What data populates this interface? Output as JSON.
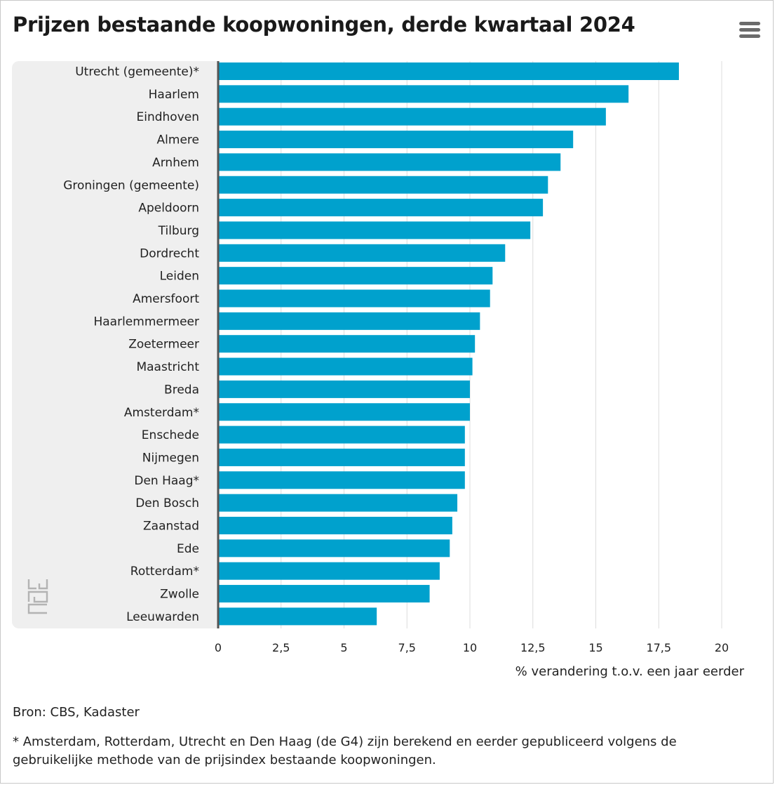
{
  "title": "Prijzen bestaande koopwoningen, derde kwartaal 2024",
  "menu": {
    "icon": "hamburger-menu-icon"
  },
  "logo": {
    "icon": "cbs-logo-icon"
  },
  "chart_data": {
    "type": "bar",
    "orientation": "horizontal",
    "title": "Prijzen bestaande koopwoningen, derde kwartaal 2024",
    "xlabel": "% verandering t.o.v. een jaar eerder",
    "ylabel": "",
    "xlim": [
      0,
      20
    ],
    "grid": true,
    "tick_values": [
      0,
      2.5,
      5,
      7.5,
      10,
      12.5,
      15,
      17.5,
      20
    ],
    "tick_labels": [
      "0",
      "2,5",
      "5",
      "7,5",
      "10",
      "12,5",
      "15",
      "17,5",
      "20"
    ],
    "bar_color": "#00a1cd",
    "categories": [
      "Utrecht (gemeente)*",
      "Haarlem",
      "Eindhoven",
      "Almere",
      "Arnhem",
      "Groningen (gemeente)",
      "Apeldoorn",
      "Tilburg",
      "Dordrecht",
      "Leiden",
      "Amersfoort",
      "Haarlemmermeer",
      "Zoetermeer",
      "Maastricht",
      "Breda",
      "Amsterdam*",
      "Enschede",
      "Nijmegen",
      "Den Haag*",
      "Den Bosch",
      "Zaanstad",
      "Ede",
      "Rotterdam*",
      "Zwolle",
      "Leeuwarden"
    ],
    "values": [
      18.3,
      16.3,
      15.4,
      14.1,
      13.6,
      13.1,
      12.9,
      12.4,
      11.4,
      10.9,
      10.8,
      10.4,
      10.2,
      10.1,
      10.0,
      10.0,
      9.8,
      9.8,
      9.8,
      9.5,
      9.3,
      9.2,
      8.8,
      8.4,
      6.3
    ]
  },
  "source": "Bron: CBS, Kadaster",
  "note": "* Amsterdam, Rotterdam, Utrecht en Den Haag (de G4) zijn berekend en eerder gepubliceerd volgens de gebruikelijke methode van de prijsindex bestaande koopwoningen."
}
